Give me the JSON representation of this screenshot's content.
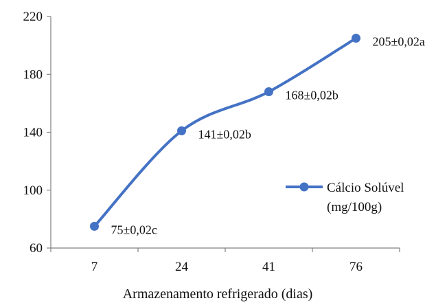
{
  "chart_data": {
    "type": "line",
    "title": "",
    "xlabel": "Armazenamento refrigerado (dias)",
    "ylabel": "",
    "categories": [
      "7",
      "24",
      "41",
      "76"
    ],
    "ylim": [
      60,
      220
    ],
    "yticks": [
      60,
      100,
      140,
      180,
      220
    ],
    "grid": false,
    "legend_position": "right",
    "series": [
      {
        "name": "Cálcio Solúvel (mg/100g)",
        "name_lines": [
          "Cálcio Solúvel",
          "(mg/100g)"
        ],
        "color": "#4472C4",
        "smooth": true,
        "values": [
          75,
          141,
          168,
          205
        ],
        "labels": [
          "75±0,02c",
          "141±0,02b",
          "168±0,02b",
          "205±0,02a"
        ]
      }
    ]
  }
}
